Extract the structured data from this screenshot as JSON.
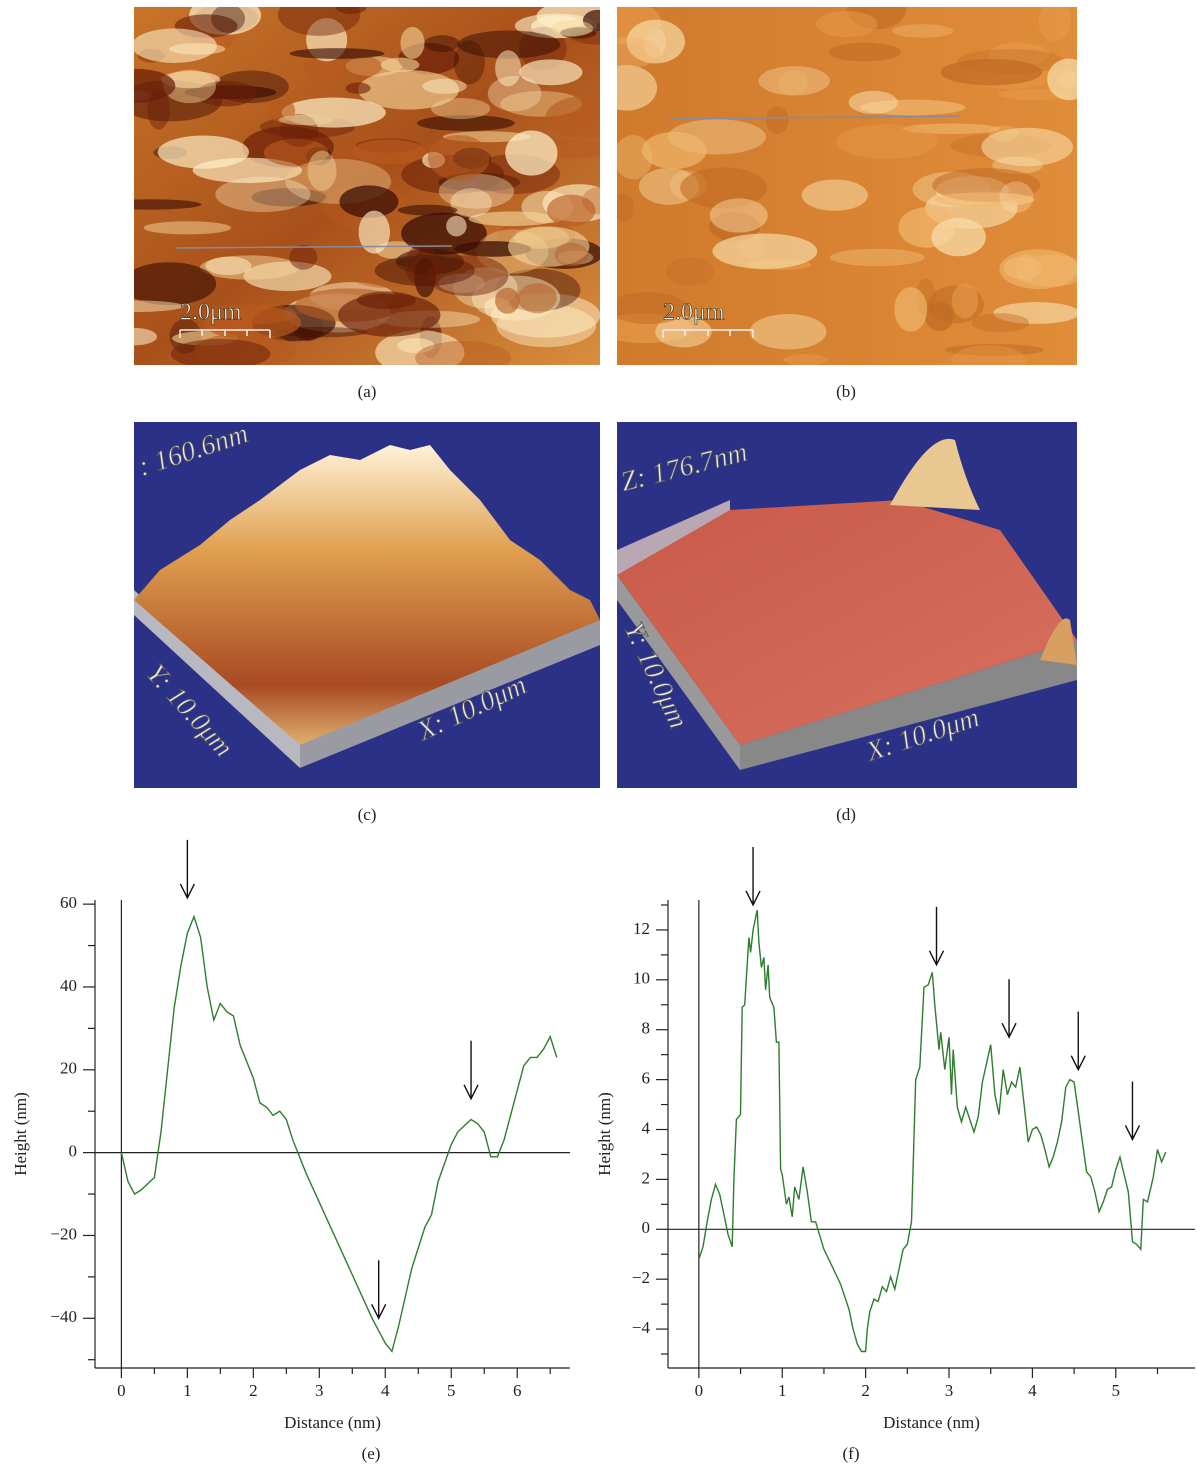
{
  "panels": [
    {
      "label": "(a)",
      "scale_bar": "2.0μm"
    },
    {
      "label": "(b)",
      "scale_bar": "2.0μm"
    },
    {
      "label": "(c)",
      "z_label": ": 160.6nm",
      "y_label": "Y: 10.0μm",
      "x_label": "X: 10.0μm"
    },
    {
      "label": "(d)",
      "z_label": "Z: 176.7nm",
      "y_label": "Y: 10.0μm",
      "x_label": "X: 10.0μm"
    }
  ],
  "chart_data": [
    {
      "type": "line",
      "label": "(e)",
      "x_label": "Distance (nm)",
      "y_label": "Height (nm)",
      "color": "#2e7d2e",
      "x": [
        0,
        0.1,
        0.2,
        0.3,
        0.5,
        0.6,
        0.7,
        0.8,
        0.9,
        1.0,
        1.1,
        1.2,
        1.3,
        1.4,
        1.5,
        1.6,
        1.7,
        1.8,
        2.0,
        2.1,
        2.2,
        2.3,
        2.4,
        2.5,
        2.6,
        2.8,
        3.0,
        3.2,
        3.4,
        3.6,
        3.8,
        4.0,
        4.1,
        4.2,
        4.4,
        4.6,
        4.7,
        4.8,
        5.0,
        5.1,
        5.3,
        5.4,
        5.5,
        5.6,
        5.7,
        5.8,
        6.0,
        6.1,
        6.2,
        6.3,
        6.4,
        6.5,
        6.6
      ],
      "values": [
        0,
        -7,
        -10,
        -9,
        -6,
        5,
        20,
        35,
        45,
        53,
        57,
        52,
        40,
        32,
        36,
        34,
        33,
        26,
        18,
        12,
        11,
        9,
        10,
        8,
        3,
        -5,
        -12,
        -19,
        -26,
        -33,
        -40,
        -46,
        -48,
        -42,
        -28,
        -18,
        -15,
        -7,
        2,
        5,
        8,
        7,
        5,
        -1,
        -1,
        3,
        15,
        21,
        23,
        23,
        25,
        28,
        23
      ],
      "arrows": [
        {
          "x": 1.0,
          "y": 61.5
        },
        {
          "x": 3.9,
          "y": -40
        },
        {
          "x": 5.3,
          "y": 13
        }
      ],
      "xlim": [
        -0.4,
        6.8
      ],
      "ylim": [
        -52,
        61
      ],
      "xticks": [
        0,
        1,
        2,
        3,
        4,
        5,
        6
      ],
      "xticks_minor": [
        0.5,
        1.5,
        2.5,
        3.5,
        4.5,
        5.5,
        6.5
      ],
      "yticks": [
        {
          "value": -40,
          "label": "−40"
        },
        {
          "value": -20,
          "label": "−20"
        },
        0,
        20,
        40,
        60
      ],
      "yticks_minor": [
        -50,
        -30,
        -10,
        10,
        30,
        50
      ]
    },
    {
      "type": "line",
      "label": "(f)",
      "x_label": "Distance (nm)",
      "y_label": "Height (nm)",
      "color": "#2e7d2e",
      "x": [
        0,
        0.05,
        0.1,
        0.15,
        0.2,
        0.25,
        0.3,
        0.35,
        0.4,
        0.42,
        0.45,
        0.5,
        0.52,
        0.55,
        0.6,
        0.62,
        0.65,
        0.7,
        0.72,
        0.75,
        0.78,
        0.8,
        0.83,
        0.85,
        0.9,
        0.93,
        0.96,
        0.98,
        1.0,
        1.05,
        1.08,
        1.12,
        1.15,
        1.2,
        1.25,
        1.3,
        1.35,
        1.4,
        1.5,
        1.6,
        1.7,
        1.8,
        1.85,
        1.9,
        1.95,
        2.0,
        2.02,
        2.05,
        2.1,
        2.15,
        2.2,
        2.25,
        2.3,
        2.35,
        2.4,
        2.45,
        2.5,
        2.55,
        2.6,
        2.65,
        2.7,
        2.75,
        2.8,
        2.83,
        2.88,
        2.9,
        2.95,
        3.0,
        3.03,
        3.05,
        3.1,
        3.15,
        3.2,
        3.3,
        3.35,
        3.4,
        3.5,
        3.55,
        3.6,
        3.65,
        3.7,
        3.75,
        3.8,
        3.85,
        3.9,
        3.95,
        4.0,
        4.05,
        4.1,
        4.15,
        4.2,
        4.25,
        4.3,
        4.35,
        4.4,
        4.45,
        4.5,
        4.55,
        4.6,
        4.65,
        4.7,
        4.75,
        4.8,
        4.85,
        4.9,
        4.95,
        5.0,
        5.05,
        5.1,
        5.15,
        5.2,
        5.25,
        5.3,
        5.33,
        5.38,
        5.45,
        5.5,
        5.55,
        5.6
      ],
      "values": [
        -1.2,
        -0.7,
        0.3,
        1.2,
        1.8,
        1.4,
        0.6,
        -0.2,
        -0.7,
        2,
        4.4,
        4.6,
        8.9,
        9,
        11.7,
        11.1,
        12,
        12.8,
        11.5,
        10.5,
        10.9,
        9.6,
        10.6,
        9.3,
        8.9,
        7.5,
        7.5,
        2.4,
        2.2,
        1.0,
        1.3,
        0.5,
        1.7,
        1.2,
        2.5,
        1.5,
        0.3,
        0.3,
        -0.8,
        -1.5,
        -2.2,
        -3.2,
        -4,
        -4.6,
        -4.9,
        -4.9,
        -4,
        -3.3,
        -2.8,
        -2.9,
        -2.3,
        -2.5,
        -1.9,
        -2.4,
        -1.6,
        -0.8,
        -0.6,
        0.3,
        6,
        6.5,
        9.7,
        9.8,
        10.3,
        9,
        7.2,
        7.9,
        6.4,
        7.7,
        5.4,
        7.2,
        4.9,
        4.3,
        4.9,
        3.9,
        4.5,
        5.9,
        7.4,
        5.4,
        4.6,
        6.4,
        5.4,
        5.9,
        5.7,
        6.5,
        5,
        3.5,
        4,
        4.1,
        3.8,
        3.2,
        2.5,
        2.9,
        3.5,
        4.3,
        5.7,
        6,
        5.9,
        4.7,
        3.5,
        2.3,
        2.1,
        1.5,
        0.7,
        1.1,
        1.6,
        1.7,
        2.4,
        2.9,
        2.2,
        1.5,
        -0.5,
        -0.6,
        -0.8,
        1.2,
        1.1,
        2.1,
        3.2,
        2.7,
        3.1
      ],
      "arrows": [
        {
          "x": 0.65,
          "y": 13.0
        },
        {
          "x": 2.85,
          "y": 10.6
        },
        {
          "x": 3.72,
          "y": 7.7
        },
        {
          "x": 4.55,
          "y": 6.4
        },
        {
          "x": 5.2,
          "y": 3.6
        }
      ],
      "xlim": [
        -0.37,
        5.95
      ],
      "ylim": [
        -5.56,
        13.2
      ],
      "xticks": [
        0,
        1,
        2,
        3,
        4,
        5
      ],
      "xticks_minor": [
        0.5,
        1.5,
        2.5,
        3.5,
        4.5,
        5.5
      ],
      "yticks": [
        {
          "value": -4,
          "label": "−4"
        },
        {
          "value": -2,
          "label": "−2"
        },
        0,
        2,
        4,
        6,
        8,
        10,
        12
      ],
      "yticks_minor": [
        -5,
        -3,
        -1,
        1,
        3,
        5,
        7,
        9,
        11,
        13
      ]
    }
  ]
}
